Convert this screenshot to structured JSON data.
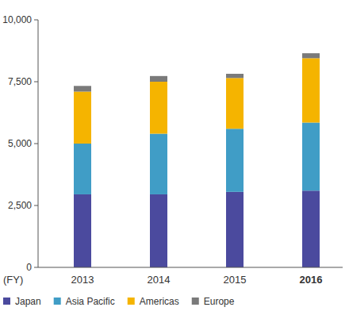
{
  "chart_data": {
    "type": "bar",
    "stacked": true,
    "x_label": "(FY)",
    "categories": [
      "2013",
      "2014",
      "2015",
      "2016"
    ],
    "series": [
      {
        "name": "Japan",
        "color": "#4b4a9e",
        "values": [
          2950,
          2950,
          3050,
          3100
        ]
      },
      {
        "name": "Asia Pacific",
        "color": "#409dc6",
        "values": [
          2050,
          2450,
          2550,
          2750
        ]
      },
      {
        "name": "Americas",
        "color": "#f5b400",
        "values": [
          2100,
          2100,
          2050,
          2600
        ]
      },
      {
        "name": "Europe",
        "color": "#7a7a7a",
        "values": [
          230,
          230,
          170,
          200
        ]
      }
    ],
    "ylim": [
      0,
      10000
    ],
    "yticks": [
      0,
      {
        "value": 2500,
        "label": "2,500"
      },
      {
        "value": 5000,
        "label": "5,000"
      },
      {
        "value": 7500,
        "label": "7,500"
      },
      {
        "value": 10000,
        "label": "10,000"
      }
    ],
    "grid": false,
    "legend": "bottom"
  }
}
